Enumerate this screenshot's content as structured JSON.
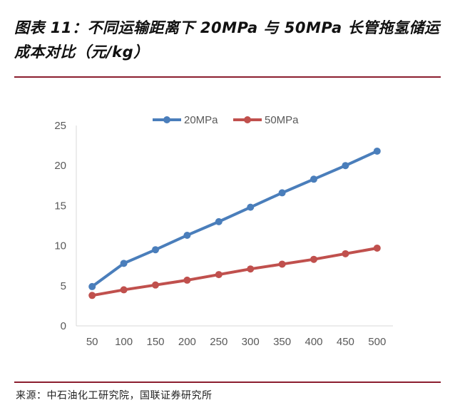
{
  "header": {
    "title": "图表 11：不同运输距离下 20MPa 与 50MPa 长管拖氢储运成本对比（元/kg）"
  },
  "footer": {
    "source": "来源：中石油化工研究院，国联证券研究所"
  },
  "chart_data": {
    "type": "line",
    "title": "图表 11：不同运输距离下 20MPa 与 50MPa 长管拖氢储运成本对比（元/kg）",
    "xlabel": "",
    "ylabel": "",
    "x": [
      "50",
      "100",
      "150",
      "200",
      "250",
      "300",
      "350",
      "400",
      "450",
      "500"
    ],
    "ylim": [
      0,
      25
    ],
    "yticks": [
      0,
      5,
      10,
      15,
      20,
      25
    ],
    "grid": false,
    "legend_position": "top-center",
    "series": [
      {
        "name": "20MPa",
        "color": "#4a7ebb",
        "values": [
          4.9,
          7.8,
          9.5,
          11.3,
          13.0,
          14.8,
          16.6,
          18.3,
          20.0,
          21.8
        ]
      },
      {
        "name": "50MPa",
        "color": "#c0504d",
        "values": [
          3.8,
          4.5,
          5.1,
          5.7,
          6.4,
          7.1,
          7.7,
          8.3,
          9.0,
          9.7
        ]
      }
    ]
  }
}
